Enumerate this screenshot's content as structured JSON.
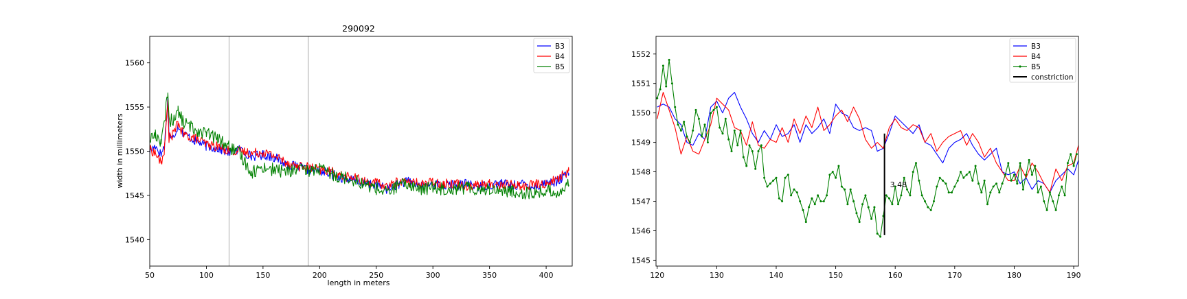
{
  "chart_data": [
    {
      "type": "line",
      "title": "290092",
      "xlabel": "length in meters",
      "ylabel": "width in millimeters",
      "xlim": [
        50,
        423
      ],
      "ylim": [
        1537,
        1563
      ],
      "xticks": [
        50,
        100,
        150,
        200,
        250,
        300,
        350,
        400
      ],
      "yticks": [
        1540,
        1545,
        1550,
        1555,
        1560
      ],
      "xtick_labels": [
        "50",
        "100",
        "150",
        "200",
        "250",
        "300",
        "350",
        "400"
      ],
      "ytick_labels": [
        "1540",
        "1545",
        "1550",
        "1555",
        "1560"
      ],
      "vlines": [
        120,
        190
      ],
      "grid": false,
      "legend_position": "top-right",
      "series": [
        {
          "name": "B3",
          "color": "#0000ff",
          "x": [
            50,
            55,
            60,
            63,
            66,
            67,
            70,
            75,
            80,
            90,
            100,
            110,
            120,
            130,
            140,
            150,
            160,
            170,
            180,
            190,
            200,
            210,
            220,
            230,
            240,
            250,
            260,
            270,
            280,
            290,
            300,
            310,
            320,
            330,
            340,
            350,
            360,
            370,
            380,
            390,
            400,
            410,
            420
          ],
          "y": [
            1550.0,
            1550.6,
            1549.6,
            1550.6,
            1556.0,
            1552.0,
            1551.3,
            1553.0,
            1552.0,
            1551.2,
            1550.6,
            1550.3,
            1549.9,
            1550.2,
            1549.4,
            1549.6,
            1549.3,
            1548.6,
            1548.2,
            1547.9,
            1547.8,
            1547.4,
            1547.0,
            1546.7,
            1546.4,
            1546.2,
            1545.7,
            1546.3,
            1546.6,
            1546.0,
            1546.3,
            1546.1,
            1546.2,
            1546.3,
            1546.0,
            1546.2,
            1546.4,
            1546.1,
            1546.3,
            1546.0,
            1546.4,
            1546.6,
            1547.5
          ]
        },
        {
          "name": "B4",
          "color": "#ff0000",
          "x": [
            50,
            55,
            60,
            63,
            66,
            67,
            70,
            75,
            80,
            90,
            100,
            110,
            120,
            130,
            140,
            150,
            160,
            170,
            180,
            190,
            200,
            210,
            220,
            230,
            240,
            250,
            260,
            270,
            280,
            290,
            300,
            310,
            320,
            330,
            340,
            350,
            360,
            370,
            380,
            390,
            400,
            410,
            420
          ],
          "y": [
            1550.2,
            1549.8,
            1548.6,
            1550.2,
            1555.6,
            1551.5,
            1551.8,
            1553.2,
            1551.8,
            1551.5,
            1550.8,
            1550.5,
            1550.1,
            1550.0,
            1549.8,
            1549.9,
            1549.5,
            1548.8,
            1548.3,
            1548.2,
            1547.9,
            1547.7,
            1547.2,
            1547.0,
            1546.6,
            1546.4,
            1546.0,
            1546.6,
            1546.5,
            1546.3,
            1546.5,
            1546.3,
            1546.4,
            1546.1,
            1546.2,
            1546.3,
            1546.2,
            1546.3,
            1546.0,
            1546.3,
            1546.3,
            1546.9,
            1547.8
          ]
        },
        {
          "name": "B5",
          "color": "#008000",
          "x": [
            50,
            55,
            60,
            63,
            66,
            67,
            70,
            75,
            80,
            90,
            100,
            110,
            120,
            130,
            140,
            150,
            160,
            170,
            180,
            190,
            200,
            210,
            220,
            230,
            240,
            250,
            260,
            270,
            280,
            290,
            300,
            310,
            320,
            330,
            340,
            350,
            360,
            370,
            380,
            390,
            400,
            410,
            420
          ],
          "y": [
            1551.5,
            1551.8,
            1551.2,
            1553.0,
            1557.0,
            1553.5,
            1553.5,
            1554.5,
            1553.2,
            1552.5,
            1552.0,
            1551.4,
            1550.5,
            1549.6,
            1547.6,
            1548.2,
            1547.9,
            1547.7,
            1547.9,
            1547.8,
            1548.0,
            1547.4,
            1547.1,
            1546.8,
            1546.2,
            1545.8,
            1545.3,
            1546.2,
            1546.2,
            1545.6,
            1546.0,
            1545.7,
            1545.8,
            1545.9,
            1545.7,
            1545.7,
            1545.6,
            1545.4,
            1545.3,
            1545.2,
            1545.5,
            1545.3,
            1546.2
          ]
        }
      ]
    },
    {
      "type": "line",
      "title": "",
      "xlabel": "",
      "ylabel": "",
      "xlim": [
        119.8,
        190.8
      ],
      "ylim": [
        1544.8,
        1552.6
      ],
      "xticks": [
        120,
        130,
        140,
        150,
        160,
        170,
        180,
        190
      ],
      "yticks": [
        1545,
        1546,
        1547,
        1548,
        1549,
        1550,
        1551,
        1552
      ],
      "xtick_labels": [
        "120",
        "130",
        "140",
        "150",
        "160",
        "170",
        "180",
        "190"
      ],
      "ytick_labels": [
        "1545",
        "1546",
        "1547",
        "1548",
        "1549",
        "1550",
        "1551",
        "1552"
      ],
      "grid": false,
      "legend_position": "top-right",
      "series": [
        {
          "name": "B3",
          "color": "#0000ff",
          "x": [
            120,
            121,
            122,
            123,
            124,
            125,
            126,
            127,
            128,
            129,
            130,
            131,
            132,
            133,
            134,
            135,
            136,
            137,
            138,
            139,
            140,
            141,
            142,
            143,
            144,
            145,
            146,
            147,
            148,
            149,
            150,
            151,
            152,
            153,
            154,
            155,
            156,
            157,
            158,
            159,
            160,
            161,
            162,
            163,
            164,
            165,
            166,
            167,
            168,
            169,
            170,
            171,
            172,
            173,
            174,
            175,
            176,
            177,
            178,
            179,
            180,
            181,
            182,
            183,
            184,
            185,
            186,
            187,
            188,
            189,
            190,
            190.8
          ],
          "y": [
            1550.2,
            1550.3,
            1550.2,
            1549.8,
            1549.6,
            1549.0,
            1548.9,
            1549.3,
            1549.1,
            1550.2,
            1550.4,
            1550.0,
            1550.5,
            1550.7,
            1550.2,
            1549.8,
            1549.3,
            1549.0,
            1549.4,
            1549.1,
            1549.6,
            1549.2,
            1549.3,
            1549.6,
            1549.0,
            1549.6,
            1549.3,
            1549.5,
            1549.8,
            1549.3,
            1550.3,
            1550.0,
            1549.9,
            1549.5,
            1549.4,
            1549.5,
            1549.4,
            1548.7,
            1548.8,
            1549.3,
            1549.9,
            1549.7,
            1549.5,
            1549.3,
            1549.6,
            1549.0,
            1548.9,
            1548.6,
            1548.3,
            1548.8,
            1549.0,
            1549.1,
            1549.3,
            1548.9,
            1548.6,
            1548.4,
            1548.6,
            1548.8,
            1548.0,
            1547.9,
            1548.0,
            1547.6,
            1547.8,
            1547.4,
            1547.7,
            1547.6,
            1547.3,
            1547.7,
            1547.9,
            1548.1,
            1547.9,
            1548.4
          ]
        },
        {
          "name": "B4",
          "color": "#ff0000",
          "x": [
            120,
            121,
            122,
            123,
            124,
            125,
            126,
            127,
            128,
            129,
            130,
            131,
            132,
            133,
            134,
            135,
            136,
            137,
            138,
            139,
            140,
            141,
            142,
            143,
            144,
            145,
            146,
            147,
            148,
            149,
            150,
            151,
            152,
            153,
            154,
            155,
            156,
            157,
            158,
            159,
            160,
            161,
            162,
            163,
            164,
            165,
            166,
            167,
            168,
            169,
            170,
            171,
            172,
            173,
            174,
            175,
            176,
            177,
            178,
            179,
            180,
            181,
            182,
            183,
            184,
            185,
            186,
            187,
            188,
            189,
            190,
            190.8
          ],
          "y": [
            1549.8,
            1550.7,
            1550.1,
            1549.5,
            1548.6,
            1549.2,
            1548.7,
            1548.6,
            1549.1,
            1549.6,
            1550.5,
            1550.3,
            1550.1,
            1549.5,
            1549.4,
            1548.9,
            1549.7,
            1548.9,
            1548.8,
            1549.1,
            1549.0,
            1549.5,
            1549.0,
            1549.8,
            1549.3,
            1549.9,
            1549.5,
            1550.2,
            1549.4,
            1549.6,
            1549.9,
            1550.1,
            1549.7,
            1550.2,
            1549.8,
            1549.1,
            1548.8,
            1549.0,
            1548.8,
            1549.5,
            1549.8,
            1549.5,
            1549.4,
            1549.6,
            1549.5,
            1549.0,
            1549.3,
            1548.7,
            1549.0,
            1549.2,
            1549.3,
            1549.4,
            1548.9,
            1549.3,
            1549.0,
            1548.5,
            1548.8,
            1548.3,
            1548.0,
            1547.7,
            1547.7,
            1548.2,
            1547.8,
            1548.3,
            1548.0,
            1547.6,
            1547.3,
            1548.1,
            1547.7,
            1548.2,
            1548.3,
            1548.9
          ]
        },
        {
          "name": "B5",
          "color": "#008000",
          "marker": "dot",
          "x": [
            120,
            120.5,
            121,
            121.5,
            122,
            122.5,
            123,
            123.5,
            124,
            124.5,
            125,
            125.5,
            126,
            126.5,
            127,
            127.5,
            128,
            128.5,
            129,
            129.5,
            130,
            130.5,
            131,
            131.5,
            132,
            132.5,
            133,
            133.5,
            134,
            134.5,
            135,
            135.5,
            136,
            136.5,
            137,
            137.5,
            138,
            138.5,
            139,
            139.5,
            140,
            140.5,
            141,
            141.5,
            142,
            142.5,
            143,
            143.5,
            144,
            144.5,
            145,
            145.5,
            146,
            146.5,
            147,
            147.5,
            148,
            148.5,
            149,
            149.5,
            150,
            150.5,
            151,
            151.5,
            152,
            152.5,
            153,
            153.5,
            154,
            154.5,
            155,
            155.5,
            156,
            156.5,
            157,
            157.5,
            158,
            158.5,
            159,
            159.5,
            160,
            160.5,
            161,
            161.5,
            162,
            162.5,
            163,
            163.5,
            164,
            164.5,
            165,
            165.5,
            166,
            166.5,
            167,
            167.5,
            168,
            168.5,
            169,
            169.5,
            170,
            170.5,
            171,
            171.5,
            172,
            172.5,
            173,
            173.5,
            174,
            174.5,
            175,
            175.5,
            176,
            176.5,
            177,
            177.5,
            178,
            178.5,
            179,
            179.5,
            180,
            180.5,
            181,
            181.5,
            182,
            182.5,
            183,
            183.5,
            184,
            184.5,
            185,
            185.5,
            186,
            186.5,
            187,
            187.5,
            188,
            188.5,
            189,
            189.5,
            190,
            190.5
          ],
          "y": [
            1550.5,
            1550.8,
            1551.6,
            1550.9,
            1551.8,
            1551.0,
            1550.2,
            1549.6,
            1549.4,
            1549.7,
            1549.2,
            1549.0,
            1549.4,
            1550.1,
            1549.8,
            1549.2,
            1549.6,
            1549.0,
            1550.0,
            1550.1,
            1550.2,
            1549.5,
            1549.3,
            1549.8,
            1549.1,
            1548.7,
            1549.4,
            1548.9,
            1549.4,
            1548.5,
            1548.2,
            1548.9,
            1548.7,
            1548.1,
            1548.7,
            1548.9,
            1547.8,
            1547.5,
            1547.6,
            1547.7,
            1547.8,
            1547.1,
            1547.0,
            1547.8,
            1547.9,
            1547.2,
            1547.4,
            1547.3,
            1547.0,
            1546.7,
            1546.3,
            1546.8,
            1547.1,
            1546.9,
            1547.2,
            1547.0,
            1547.0,
            1547.2,
            1547.9,
            1548.0,
            1547.8,
            1548.2,
            1547.5,
            1547.4,
            1546.9,
            1547.4,
            1547.0,
            1546.6,
            1546.3,
            1546.9,
            1547.2,
            1546.8,
            1546.4,
            1546.8,
            1545.9,
            1545.8,
            1546.5,
            1547.2,
            1547.1,
            1546.9,
            1547.5,
            1546.9,
            1547.2,
            1547.8,
            1547.4,
            1547.2,
            1548.0,
            1548.3,
            1547.7,
            1547.2,
            1547.0,
            1546.8,
            1546.7,
            1547.0,
            1547.5,
            1547.8,
            1547.7,
            1547.6,
            1547.3,
            1547.3,
            1547.5,
            1547.7,
            1548.0,
            1547.8,
            1547.9,
            1548.0,
            1547.7,
            1548.2,
            1547.6,
            1547.3,
            1547.7,
            1546.9,
            1547.3,
            1547.5,
            1547.6,
            1547.3,
            1547.6,
            1547.9,
            1548.3,
            1547.7,
            1547.9,
            1547.6,
            1548.3,
            1547.4,
            1547.9,
            1548.4,
            1547.9,
            1548.2,
            1547.3,
            1547.5,
            1547.0,
            1546.7,
            1547.3,
            1547.0,
            1546.7,
            1547.2,
            1547.5,
            1547.2,
            1548.3,
            1548.6,
            1548.2,
            1548.6
          ]
        }
      ],
      "annotation": {
        "name": "constriction",
        "x": 158.2,
        "y1": 1545.85,
        "y2": 1549.3,
        "text": "3.48",
        "color": "#000000"
      }
    }
  ]
}
